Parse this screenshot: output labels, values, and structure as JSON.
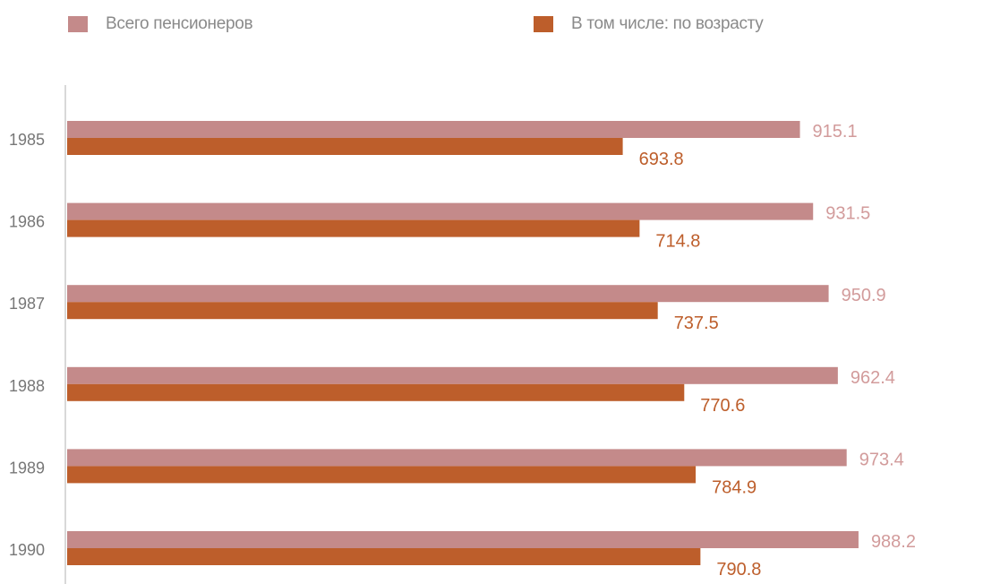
{
  "chart_data": {
    "type": "bar",
    "orientation": "horizontal",
    "categories": [
      "1985",
      "1986",
      "1987",
      "1988",
      "1989",
      "1990"
    ],
    "series": [
      {
        "name": "Всего пенсионеров",
        "color": "#c48a8a",
        "values": [
          915.1,
          931.5,
          950.9,
          962.4,
          973.4,
          988.2
        ],
        "labels": [
          "915.1",
          "931.5",
          "950.9",
          "962.4",
          "973.4",
          "988.2"
        ]
      },
      {
        "name": "В том числе: по возрасту",
        "color": "#bd5e2b",
        "values": [
          693.8,
          714.8,
          737.5,
          770.6,
          784.9,
          790.8
        ],
        "labels": [
          "693.8",
          "714.8",
          "737.5",
          "770.6",
          "784.9",
          "790.8"
        ]
      }
    ],
    "title": "",
    "xlabel": "",
    "ylabel": "",
    "xlim": [
      0,
      1000
    ],
    "grid": false,
    "legend_position": "top"
  }
}
